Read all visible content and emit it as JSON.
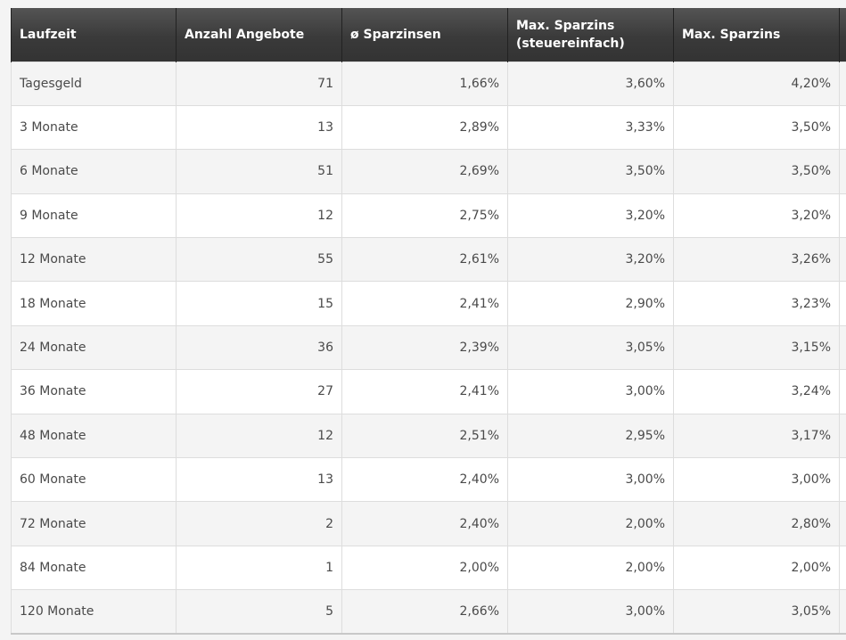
{
  "table": {
    "headers": [
      "Laufzeit",
      "Anzahl Angebote",
      "ø Sparzinsen",
      "Max. Sparzins (steuereinfach)",
      "Max. Sparzins"
    ],
    "rows": [
      [
        "Tagesgeld",
        "71",
        "1,66%",
        "3,60%",
        "4,20%"
      ],
      [
        "3 Monate",
        "13",
        "2,89%",
        "3,33%",
        "3,50%"
      ],
      [
        "6 Monate",
        "51",
        "2,69%",
        "3,50%",
        "3,50%"
      ],
      [
        "9 Monate",
        "12",
        "2,75%",
        "3,20%",
        "3,20%"
      ],
      [
        "12 Monate",
        "55",
        "2,61%",
        "3,20%",
        "3,26%"
      ],
      [
        "18 Monate",
        "15",
        "2,41%",
        "2,90%",
        "3,23%"
      ],
      [
        "24 Monate",
        "36",
        "2,39%",
        "3,05%",
        "3,15%"
      ],
      [
        "36 Monate",
        "27",
        "2,41%",
        "3,00%",
        "3,24%"
      ],
      [
        "48 Monate",
        "12",
        "2,51%",
        "2,95%",
        "3,17%"
      ],
      [
        "60 Monate",
        "13",
        "2,40%",
        "3,00%",
        "3,00%"
      ],
      [
        "72 Monate",
        "2",
        "2,40%",
        "2,00%",
        "2,80%"
      ],
      [
        "84 Monate",
        "1",
        "2,00%",
        "2,00%",
        "2,00%"
      ],
      [
        "120 Monate",
        "5",
        "2,66%",
        "3,00%",
        "3,05%"
      ]
    ]
  }
}
